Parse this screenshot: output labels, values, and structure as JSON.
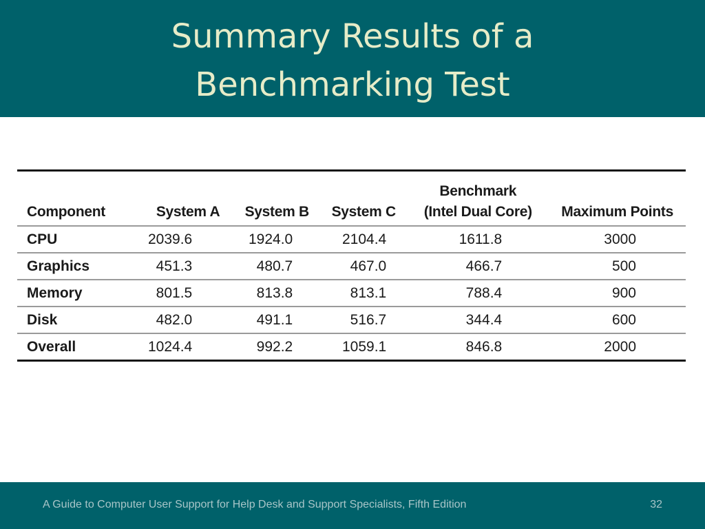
{
  "slide": {
    "title_line1": "Summary Results of a",
    "title_line2": "Benchmarking Test",
    "footer": "A Guide to Computer User Support for Help Desk and Support Specialists, Fifth Edition",
    "page_number": "32"
  },
  "table": {
    "headers": {
      "component": "Component",
      "system_a": "System A",
      "system_b": "System B",
      "system_c": "System C",
      "benchmark_line1": "Benchmark",
      "benchmark_line2": "(Intel Dual Core)",
      "max_points": "Maximum Points"
    },
    "rows": [
      {
        "component": "CPU",
        "system_a": "2039.6",
        "system_b": "1924.0",
        "system_c": "2104.4",
        "benchmark": "1611.8",
        "max_points": "3000"
      },
      {
        "component": "Graphics",
        "system_a": "451.3",
        "system_b": "480.7",
        "system_c": "467.0",
        "benchmark": "466.7",
        "max_points": "500"
      },
      {
        "component": "Memory",
        "system_a": "801.5",
        "system_b": "813.8",
        "system_c": "813.1",
        "benchmark": "788.4",
        "max_points": "900"
      },
      {
        "component": "Disk",
        "system_a": "482.0",
        "system_b": "491.1",
        "system_c": "516.7",
        "benchmark": "344.4",
        "max_points": "600"
      },
      {
        "component": "Overall",
        "system_a": "1024.4",
        "system_b": "992.2",
        "system_c": "1059.1",
        "benchmark": "846.8",
        "max_points": "2000"
      }
    ]
  }
}
